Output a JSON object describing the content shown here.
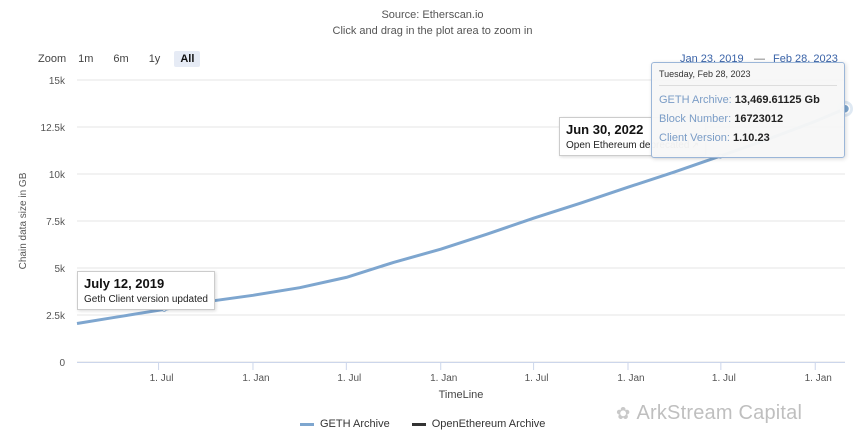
{
  "header": {
    "source": "Source: Etherscan.io",
    "hint": "Click and drag in the plot area to zoom in"
  },
  "zoom": {
    "label": "Zoom",
    "buttons": [
      "1m",
      "6m",
      "1y",
      "All"
    ],
    "active": "All"
  },
  "range": {
    "from": "Jan 23, 2019",
    "dash": "—",
    "to": "Feb 28, 2023"
  },
  "colors": {
    "series": "#7ea6cf",
    "point": "#7ea6cf"
  },
  "annotations": [
    {
      "title": "July 12, 2019",
      "text": "Geth Client version updated"
    },
    {
      "title": "Jun 30, 2022",
      "text": "Open Ethereum deprecated",
      "icon": "external-link-icon"
    }
  ],
  "tooltip": {
    "date": "Tuesday, Feb 28, 2023",
    "rows": [
      {
        "key": "GETH Archive: ",
        "value": "13,469.61125 Gb"
      },
      {
        "key": "Block Number: ",
        "value": "16723012"
      },
      {
        "key": "Client Version: ",
        "value": "1.10.23"
      }
    ]
  },
  "legend": [
    "GETH Archive",
    "OpenEthereum Archive"
  ],
  "watermark": {
    "icon": "wechat-icon",
    "text": "ArkStream Capital"
  },
  "chart_data": {
    "type": "line",
    "xlabel": "TimeLine",
    "ylabel": "Chain data size in GB",
    "ylim": [
      0,
      15000
    ],
    "xlim": [
      "2019-01-23",
      "2023-02-28"
    ],
    "yticks": [
      0,
      2500,
      5000,
      7500,
      10000,
      12500,
      15000
    ],
    "ytick_labels": [
      "0",
      "2.5k",
      "5k",
      "7.5k",
      "10k",
      "12.5k",
      "15k"
    ],
    "xticks": [
      "2019-07-01",
      "2020-01-01",
      "2020-07-01",
      "2021-01-01",
      "2021-07-01",
      "2022-01-01",
      "2022-07-01",
      "2023-01-01"
    ],
    "xtick_labels": [
      "1. Jul",
      "1. Jan",
      "1. Jul",
      "1. Jan",
      "1. Jul",
      "1. Jan",
      "1. Jul",
      "1. Jan"
    ],
    "grid": true,
    "legend_position": "bottom",
    "series": [
      {
        "name": "GETH Archive",
        "x": [
          "2019-01-23",
          "2019-04-01",
          "2019-07-12",
          "2019-10-01",
          "2020-01-01",
          "2020-04-01",
          "2020-07-01",
          "2020-10-01",
          "2021-01-01",
          "2021-04-01",
          "2021-07-01",
          "2021-10-01",
          "2022-01-01",
          "2022-04-01",
          "2022-06-30",
          "2022-10-01",
          "2023-01-01",
          "2023-02-28"
        ],
        "y": [
          2050,
          2350,
          2800,
          3200,
          3550,
          3950,
          4500,
          5300,
          6000,
          6800,
          7650,
          8450,
          9300,
          10100,
          10950,
          11850,
          12800,
          13469.61125
        ]
      },
      {
        "name": "OpenEthereum Archive",
        "x": [],
        "y": []
      }
    ],
    "annotation_points": [
      {
        "x": "2019-07-12",
        "y": 2800
      },
      {
        "x": "2022-06-30",
        "y": 10950
      }
    ],
    "highlight_point": {
      "x": "2023-02-28",
      "y": 13469.61125
    }
  }
}
